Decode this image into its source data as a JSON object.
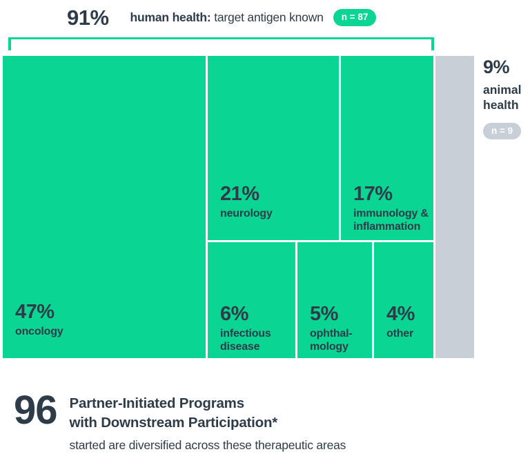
{
  "colors": {
    "green": "#0bd592",
    "gray": "#c9cfd7",
    "dark_text": "#2e3c49"
  },
  "header": {
    "percent": "91%",
    "label_bold": "human health:",
    "label_rest": " target antigen known",
    "badge": "n = 87"
  },
  "treemap": {
    "blocks": [
      {
        "percent": "47%",
        "label": "oncology"
      },
      {
        "percent": "21%",
        "label": "neurology"
      },
      {
        "percent": "17%",
        "label": "immunology & inflammation"
      },
      {
        "percent": "6%",
        "label": "infectious disease"
      },
      {
        "percent": "5%",
        "label": "ophthal-mology"
      },
      {
        "percent": "4%",
        "label": "other"
      }
    ]
  },
  "animal_health": {
    "percent": "9%",
    "label_line1": "animal",
    "label_line2": "health",
    "badge": "n = 9"
  },
  "footer": {
    "number": "96",
    "title_line1": "Partner-Initiated Programs",
    "title_line2": "with Downstream Participation*",
    "subtitle": "started are diversified across these therapeutic areas"
  },
  "chart_data": {
    "type": "treemap",
    "title": "96 Partner-Initiated Programs with Downstream Participation* started are diversified across these therapeutic areas",
    "total_programs": 96,
    "groups": [
      {
        "name": "human health: target antigen known",
        "percent": 91,
        "n": 87,
        "color": "#0bd592",
        "segments": [
          {
            "label": "oncology",
            "percent": 47
          },
          {
            "label": "neurology",
            "percent": 21
          },
          {
            "label": "immunology & inflammation",
            "percent": 17
          },
          {
            "label": "infectious disease",
            "percent": 6
          },
          {
            "label": "ophthalmology",
            "percent": 5
          },
          {
            "label": "other",
            "percent": 4
          }
        ]
      },
      {
        "name": "animal health",
        "percent": 9,
        "n": 9,
        "color": "#c9cfd7",
        "segments": []
      }
    ],
    "legend_position": "none",
    "grid": false
  }
}
